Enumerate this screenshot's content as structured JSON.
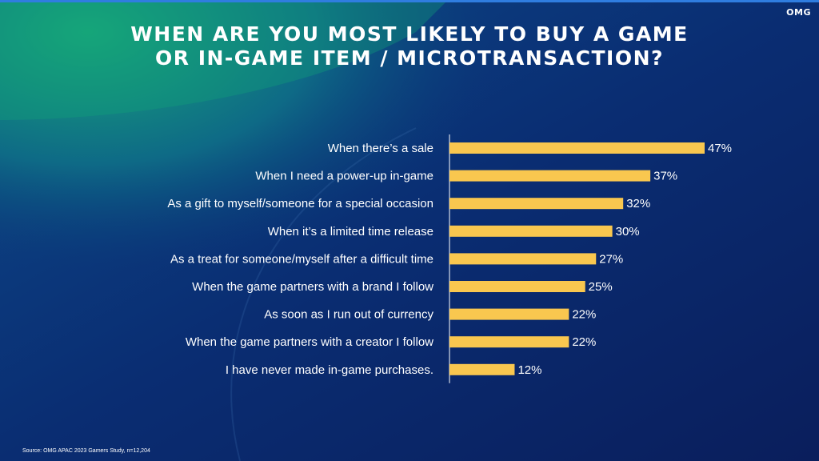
{
  "logo": "OMG",
  "title_lines": [
    "WHEN ARE YOU MOST LIKELY TO BUY A GAME",
    "OR IN-GAME ITEM / MICROTRANSACTION?"
  ],
  "source": "Source: OMG APAC 2023 Gamers Study, n=12,204",
  "colors": {
    "bar": "#f9c74f",
    "text": "#ffffff",
    "axis": "#ffffff"
  },
  "chart_data": {
    "type": "bar",
    "orientation": "horizontal",
    "categories": [
      "When there’s a sale",
      "When I need a power-up in-game",
      "As a gift to myself/someone for a special occasion",
      "When it’s a limited time release",
      "As a treat for someone/myself after a difficult time",
      "When the game partners with a brand I follow",
      "As soon as I run out of currency",
      "When the game partners with a creator I follow",
      "I have never made in-game purchases."
    ],
    "values": [
      47,
      37,
      32,
      30,
      27,
      25,
      22,
      22,
      12
    ],
    "value_labels": [
      "47%",
      "37%",
      "32%",
      "30%",
      "27%",
      "25%",
      "22%",
      "22%",
      "12%"
    ],
    "unit": "%",
    "xlim": [
      0,
      47
    ],
    "grid": false,
    "legend": "none"
  }
}
